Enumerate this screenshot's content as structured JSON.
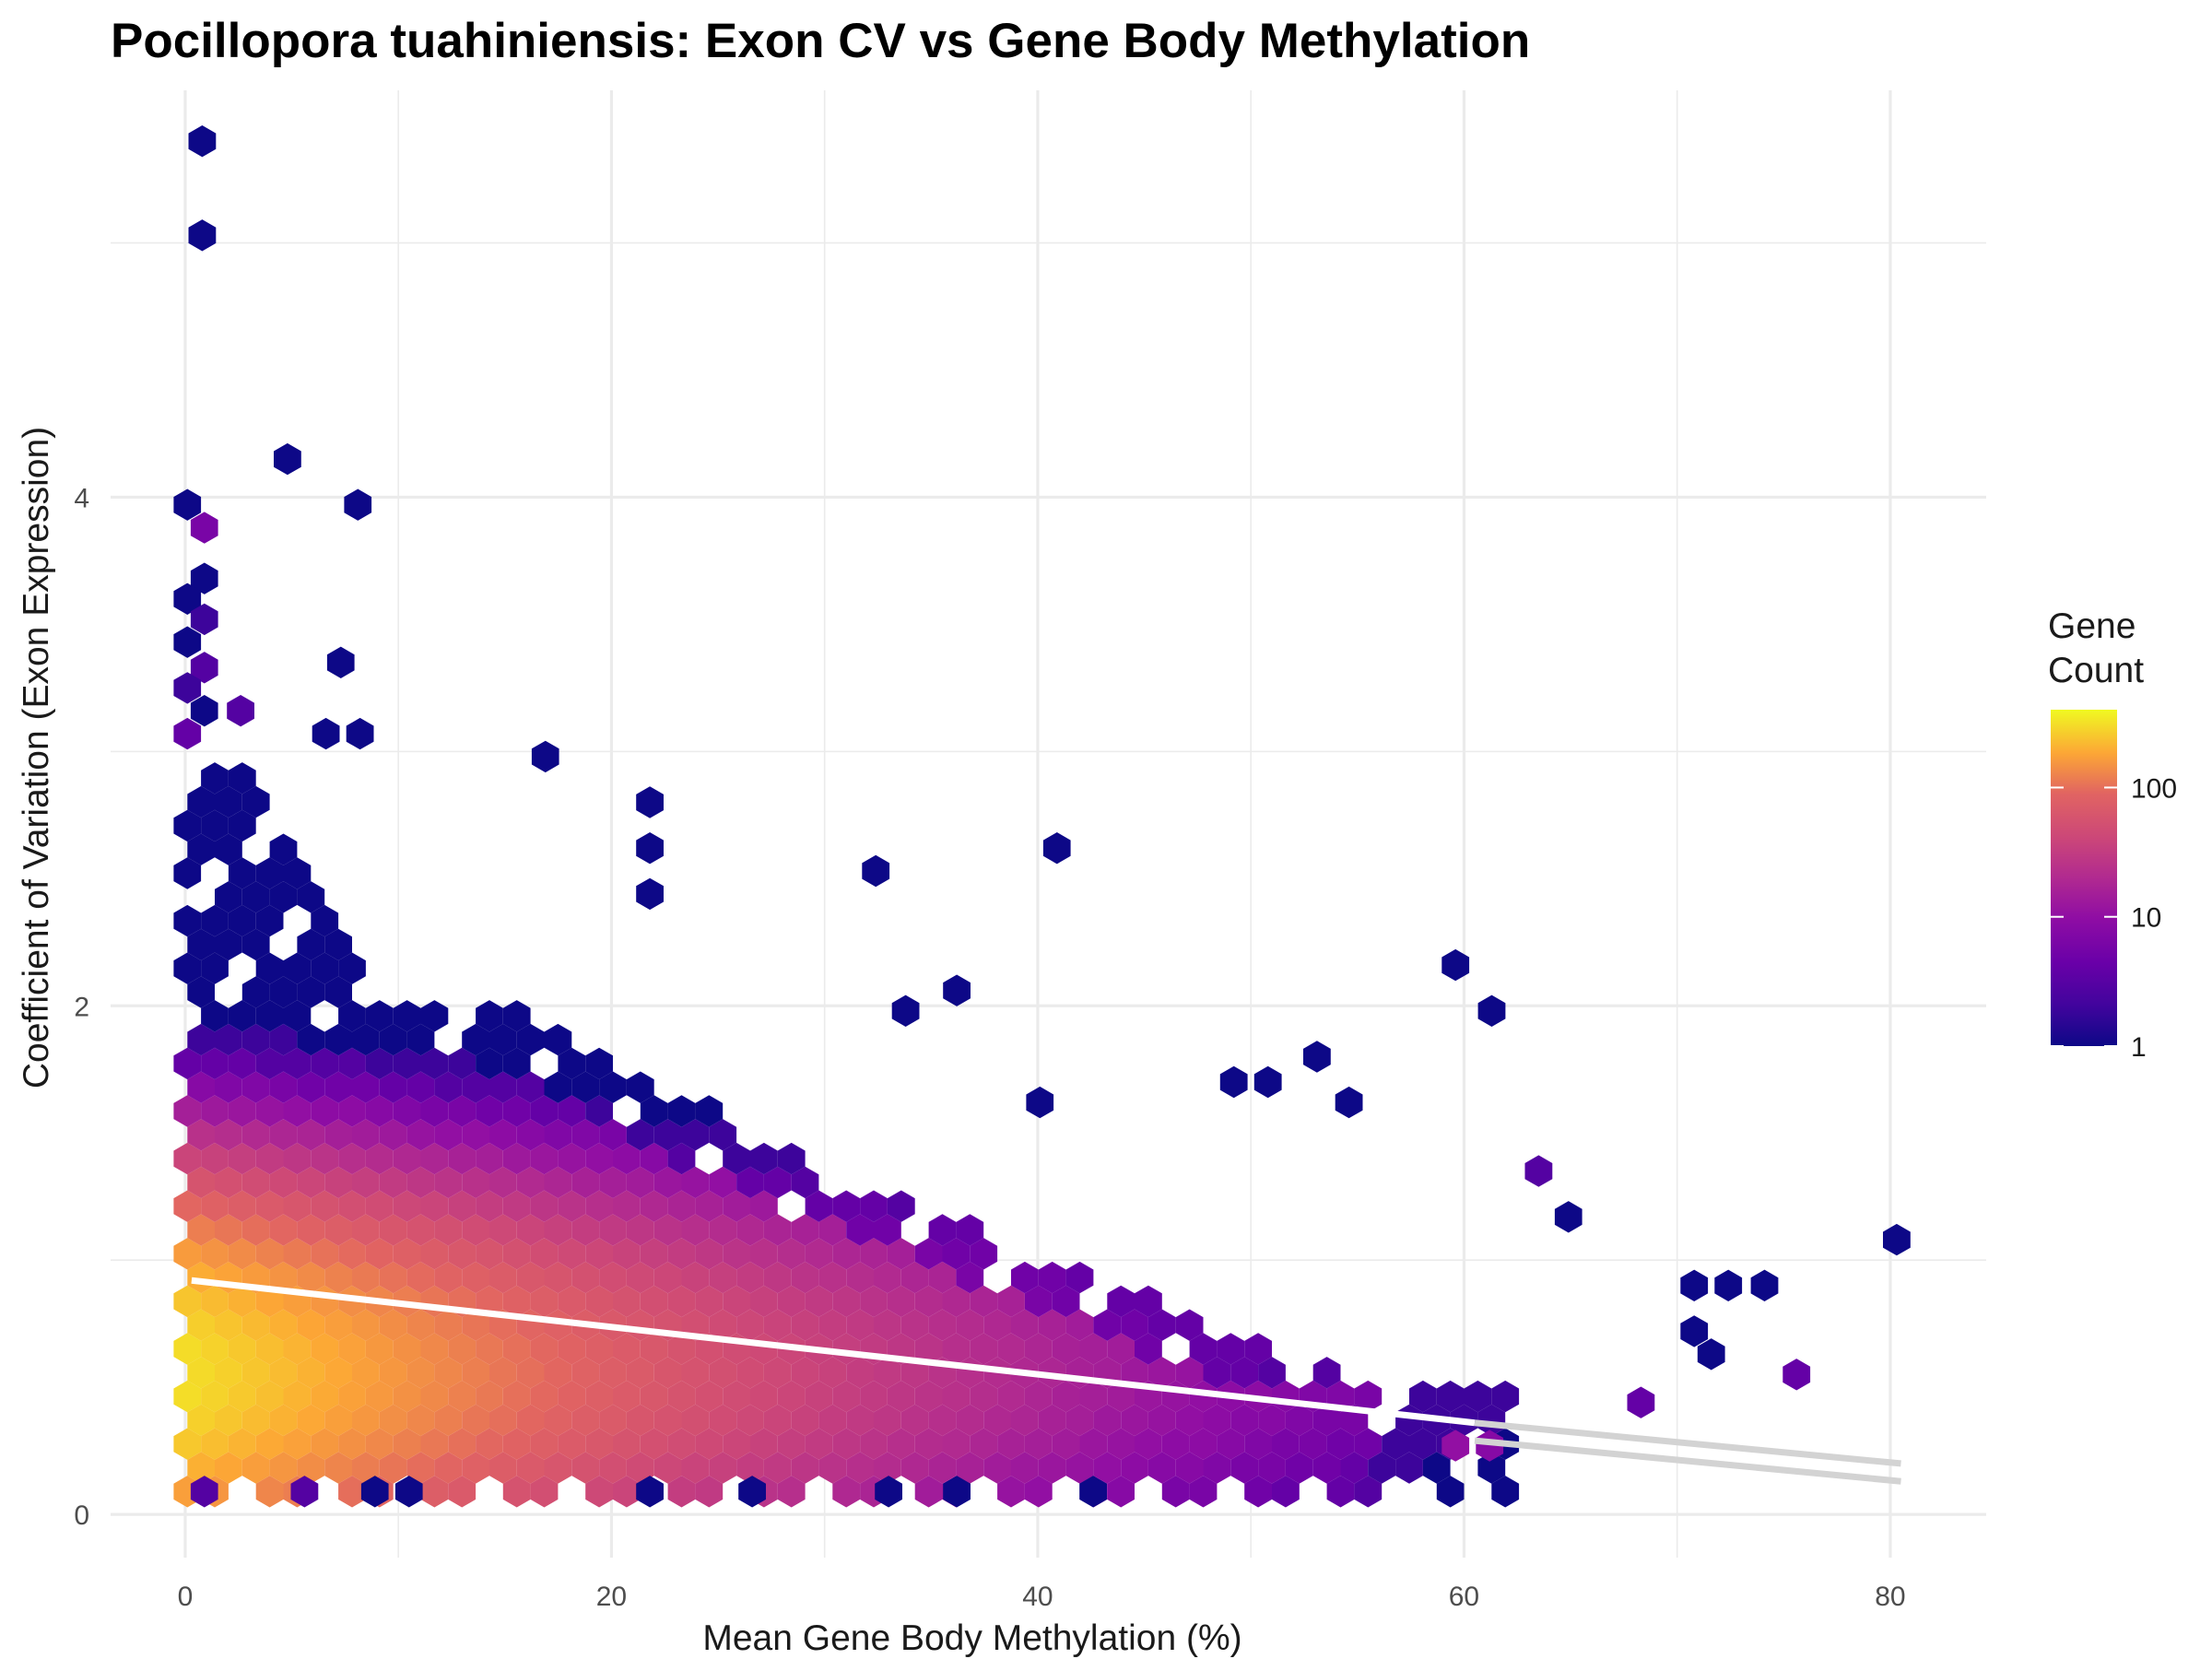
{
  "chart_data": {
    "type": "hexbin",
    "title": "Pocillopora tuahiniensis: Exon CV vs Gene Body Methylation",
    "xlabel": "Mean Gene Body Methylation (%)",
    "ylabel": "Coefficient of Variation (Exon Expression)",
    "xlim": [
      -3.5,
      84.5
    ],
    "ylim": [
      -0.17,
      5.6
    ],
    "xticks": [
      0,
      20,
      40,
      60,
      80
    ],
    "yticks": [
      0,
      2,
      4
    ],
    "grid": true,
    "legend": {
      "title_lines": [
        "Gene",
        "Count"
      ],
      "scale": "log10",
      "min": 1,
      "max": 400,
      "ticks": [
        1,
        10,
        100
      ],
      "tick_labels": [
        "1",
        "10",
        "100"
      ],
      "placement": "right",
      "palette": "plasma"
    },
    "trend_lines": [
      {
        "x": [
          0.3,
          60.5
        ],
        "y": [
          0.92,
          0.36
        ],
        "color": "#ffffff"
      },
      {
        "x": [
          60.5,
          80.5
        ],
        "y": [
          0.36,
          0.2
        ],
        "color": "#d3d3d3"
      },
      {
        "x": [
          60.5,
          80.5
        ],
        "y": [
          0.29,
          0.13
        ],
        "color": "#d3d3d3"
      }
    ],
    "hexbins": [
      {
        "x": 0.8,
        "y": 5.4,
        "count": 1
      },
      {
        "x": 0.8,
        "y": 5.03,
        "count": 1
      },
      {
        "x": 4.8,
        "y": 4.15,
        "count": 1
      },
      {
        "x": 0.1,
        "y": 3.97,
        "count": 1
      },
      {
        "x": 8.1,
        "y": 3.97,
        "count": 1
      },
      {
        "x": 0.9,
        "y": 3.88,
        "count": 6
      },
      {
        "x": 0.9,
        "y": 3.68,
        "count": 1
      },
      {
        "x": 0.1,
        "y": 3.6,
        "count": 1
      },
      {
        "x": 0.9,
        "y": 3.52,
        "count": 2
      },
      {
        "x": 0.1,
        "y": 3.43,
        "count": 1
      },
      {
        "x": 0.9,
        "y": 3.33,
        "count": 3
      },
      {
        "x": 7.3,
        "y": 3.35,
        "count": 1
      },
      {
        "x": 0.1,
        "y": 3.25,
        "count": 2
      },
      {
        "x": 0.9,
        "y": 3.16,
        "count": 1
      },
      {
        "x": 2.6,
        "y": 3.16,
        "count": 3
      },
      {
        "x": 0.1,
        "y": 3.07,
        "count": 4
      },
      {
        "x": 6.6,
        "y": 3.07,
        "count": 1
      },
      {
        "x": 8.2,
        "y": 3.07,
        "count": 1
      },
      {
        "x": 16.9,
        "y": 2.98,
        "count": 1
      },
      {
        "x": 21.8,
        "y": 2.8,
        "count": 1
      },
      {
        "x": 40.9,
        "y": 2.62,
        "count": 1
      },
      {
        "x": 32.4,
        "y": 2.53,
        "count": 1
      },
      {
        "x": 21.8,
        "y": 2.62,
        "count": 1
      },
      {
        "x": 21.8,
        "y": 2.44,
        "count": 1
      },
      {
        "x": 36.2,
        "y": 2.06,
        "count": 1
      },
      {
        "x": 33.8,
        "y": 1.98,
        "count": 1
      },
      {
        "x": 59.6,
        "y": 2.16,
        "count": 1
      },
      {
        "x": 61.3,
        "y": 1.98,
        "count": 1
      },
      {
        "x": 53.1,
        "y": 1.8,
        "count": 1
      },
      {
        "x": 49.2,
        "y": 1.7,
        "count": 1
      },
      {
        "x": 50.8,
        "y": 1.7,
        "count": 1
      },
      {
        "x": 54.6,
        "y": 1.62,
        "count": 1
      },
      {
        "x": 40.1,
        "y": 1.62,
        "count": 1
      },
      {
        "x": 63.5,
        "y": 1.35,
        "count": 3
      },
      {
        "x": 64.9,
        "y": 1.17,
        "count": 1
      },
      {
        "x": 80.3,
        "y": 1.08,
        "count": 1
      },
      {
        "x": 75.6,
        "y": 0.55,
        "count": 4
      },
      {
        "x": 70.8,
        "y": 0.9,
        "count": 1
      },
      {
        "x": 72.4,
        "y": 0.9,
        "count": 1
      },
      {
        "x": 74.1,
        "y": 0.9,
        "count": 1
      },
      {
        "x": 70.8,
        "y": 0.72,
        "count": 1
      },
      {
        "x": 71.6,
        "y": 0.63,
        "count": 1
      },
      {
        "x": 68.3,
        "y": 0.44,
        "count": 4
      },
      {
        "x": 59.6,
        "y": 0.27,
        "count": 10
      },
      {
        "x": 61.2,
        "y": 0.27,
        "count": 8
      },
      {
        "x": 0.9,
        "y": 0.09,
        "count": 3
      },
      {
        "x": 5.6,
        "y": 0.09,
        "count": 3
      },
      {
        "x": 8.9,
        "y": 0.09,
        "count": 1
      },
      {
        "x": 10.5,
        "y": 0.09,
        "count": 1
      },
      {
        "x": 21.8,
        "y": 0.09,
        "count": 1
      },
      {
        "x": 26.6,
        "y": 0.09,
        "count": 1
      },
      {
        "x": 33.0,
        "y": 0.09,
        "count": 1
      },
      {
        "x": 36.2,
        "y": 0.09,
        "count": 1
      },
      {
        "x": 42.6,
        "y": 0.09,
        "count": 1
      }
    ]
  }
}
